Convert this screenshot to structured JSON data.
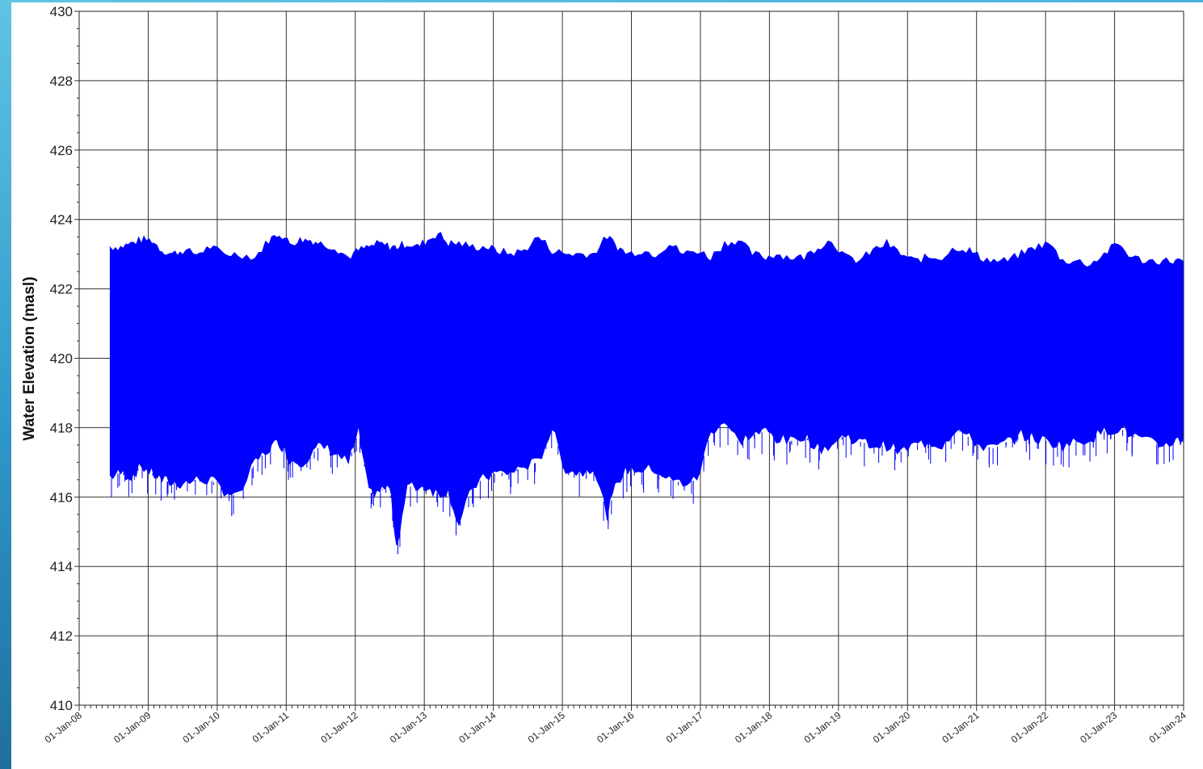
{
  "chart_data": {
    "type": "area",
    "title": "",
    "xlabel": "",
    "ylabel": "Water Elevation (masl)",
    "ylim": [
      410,
      430
    ],
    "xlim": [
      "2008-01-01",
      "2024-01-01"
    ],
    "y_ticks": [
      410,
      412,
      414,
      416,
      418,
      420,
      422,
      424,
      426,
      428,
      430
    ],
    "x_tick_labels": [
      "01-Jan-08",
      "01-Jan-09",
      "01-Jan-10",
      "01-Jan-11",
      "01-Jan-12",
      "01-Jan-13",
      "01-Jan-14",
      "01-Jan-15",
      "01-Jan-16",
      "01-Jan-17",
      "01-Jan-18",
      "01-Jan-19",
      "01-Jan-20",
      "01-Jan-21",
      "01-Jan-22",
      "01-Jan-23",
      "01-Jan-24"
    ],
    "grid": true,
    "legend": "none",
    "series": [
      {
        "color": "#0000ff",
        "description_range": "daily min-max envelope",
        "x": [
          2008.45,
          2008.6,
          2008.75,
          2008.9,
          2009.05,
          2009.2,
          2009.35,
          2009.5,
          2009.7,
          2009.9,
          2010.1,
          2010.3,
          2010.55,
          2010.75,
          2010.9,
          2011.05,
          2011.2,
          2011.35,
          2011.5,
          2011.7,
          2011.9,
          2012.05,
          2012.2,
          2012.35,
          2012.5,
          2012.6,
          2012.75,
          2012.9,
          2013.05,
          2013.2,
          2013.35,
          2013.5,
          2013.7,
          2013.9,
          2014.05,
          2014.25,
          2014.45,
          2014.65,
          2014.85,
          2015.05,
          2015.25,
          2015.45,
          2015.65,
          2015.8,
          2015.95,
          2016.15,
          2016.35,
          2016.55,
          2016.75,
          2016.95,
          2017.15,
          2017.35,
          2017.55,
          2017.75,
          2017.95,
          2018.1,
          2018.3,
          2018.5,
          2018.7,
          2018.9,
          2019.1,
          2019.3,
          2019.5,
          2019.7,
          2019.9,
          2020.1,
          2020.3,
          2020.5,
          2020.7,
          2020.9,
          2021.05,
          2021.25,
          2021.45,
          2021.65,
          2021.85,
          2022.05,
          2022.25,
          2022.45,
          2022.65,
          2022.85,
          2023.05,
          2023.25,
          2023.45,
          2023.65,
          2023.85,
          2023.99
        ],
        "y_high": [
          423.2,
          423.2,
          423.3,
          423.4,
          423.4,
          423.1,
          423.0,
          423.1,
          423.0,
          423.2,
          423.0,
          423.0,
          422.9,
          423.4,
          423.6,
          423.3,
          423.4,
          423.4,
          423.3,
          423.2,
          422.9,
          423.1,
          423.2,
          423.3,
          423.2,
          423.2,
          423.3,
          423.2,
          423.4,
          423.6,
          423.3,
          423.3,
          423.2,
          423.2,
          423.1,
          423.0,
          423.1,
          423.5,
          423.1,
          423.0,
          423.0,
          423.0,
          423.5,
          423.2,
          423.0,
          423.1,
          423.0,
          423.3,
          423.0,
          423.1,
          422.9,
          423.3,
          423.4,
          423.0,
          422.9,
          423.0,
          422.9,
          422.9,
          423.2,
          423.4,
          422.9,
          422.8,
          423.1,
          423.3,
          423.0,
          422.8,
          422.9,
          422.9,
          423.2,
          423.1,
          422.9,
          422.8,
          422.8,
          423.0,
          423.2,
          423.3,
          422.8,
          422.8,
          422.7,
          423.0,
          423.3,
          422.9,
          422.8,
          422.8,
          422.8,
          422.8
        ],
        "y_low": [
          416.6,
          416.7,
          416.6,
          416.9,
          416.7,
          416.5,
          416.4,
          416.4,
          416.5,
          416.5,
          416.2,
          416.0,
          417.0,
          417.4,
          417.6,
          417.1,
          417.0,
          417.2,
          417.5,
          417.3,
          417.0,
          417.9,
          416.1,
          416.2,
          416.3,
          414.6,
          416.3,
          416.3,
          416.3,
          416.1,
          416.2,
          415.2,
          416.3,
          416.6,
          416.7,
          416.7,
          416.9,
          417.0,
          418.0,
          416.8,
          416.7,
          416.9,
          415.5,
          416.5,
          416.8,
          416.8,
          416.8,
          416.5,
          416.4,
          416.5,
          417.9,
          418.2,
          417.6,
          417.8,
          417.9,
          417.7,
          417.6,
          417.8,
          417.4,
          417.5,
          417.8,
          417.6,
          417.5,
          417.5,
          417.3,
          417.5,
          417.6,
          417.5,
          418.0,
          417.7,
          417.5,
          417.4,
          417.6,
          417.8,
          417.7,
          417.6,
          417.5,
          417.6,
          417.7,
          417.9,
          418.0,
          417.8,
          417.6,
          417.5,
          417.6,
          417.7
        ]
      }
    ]
  }
}
